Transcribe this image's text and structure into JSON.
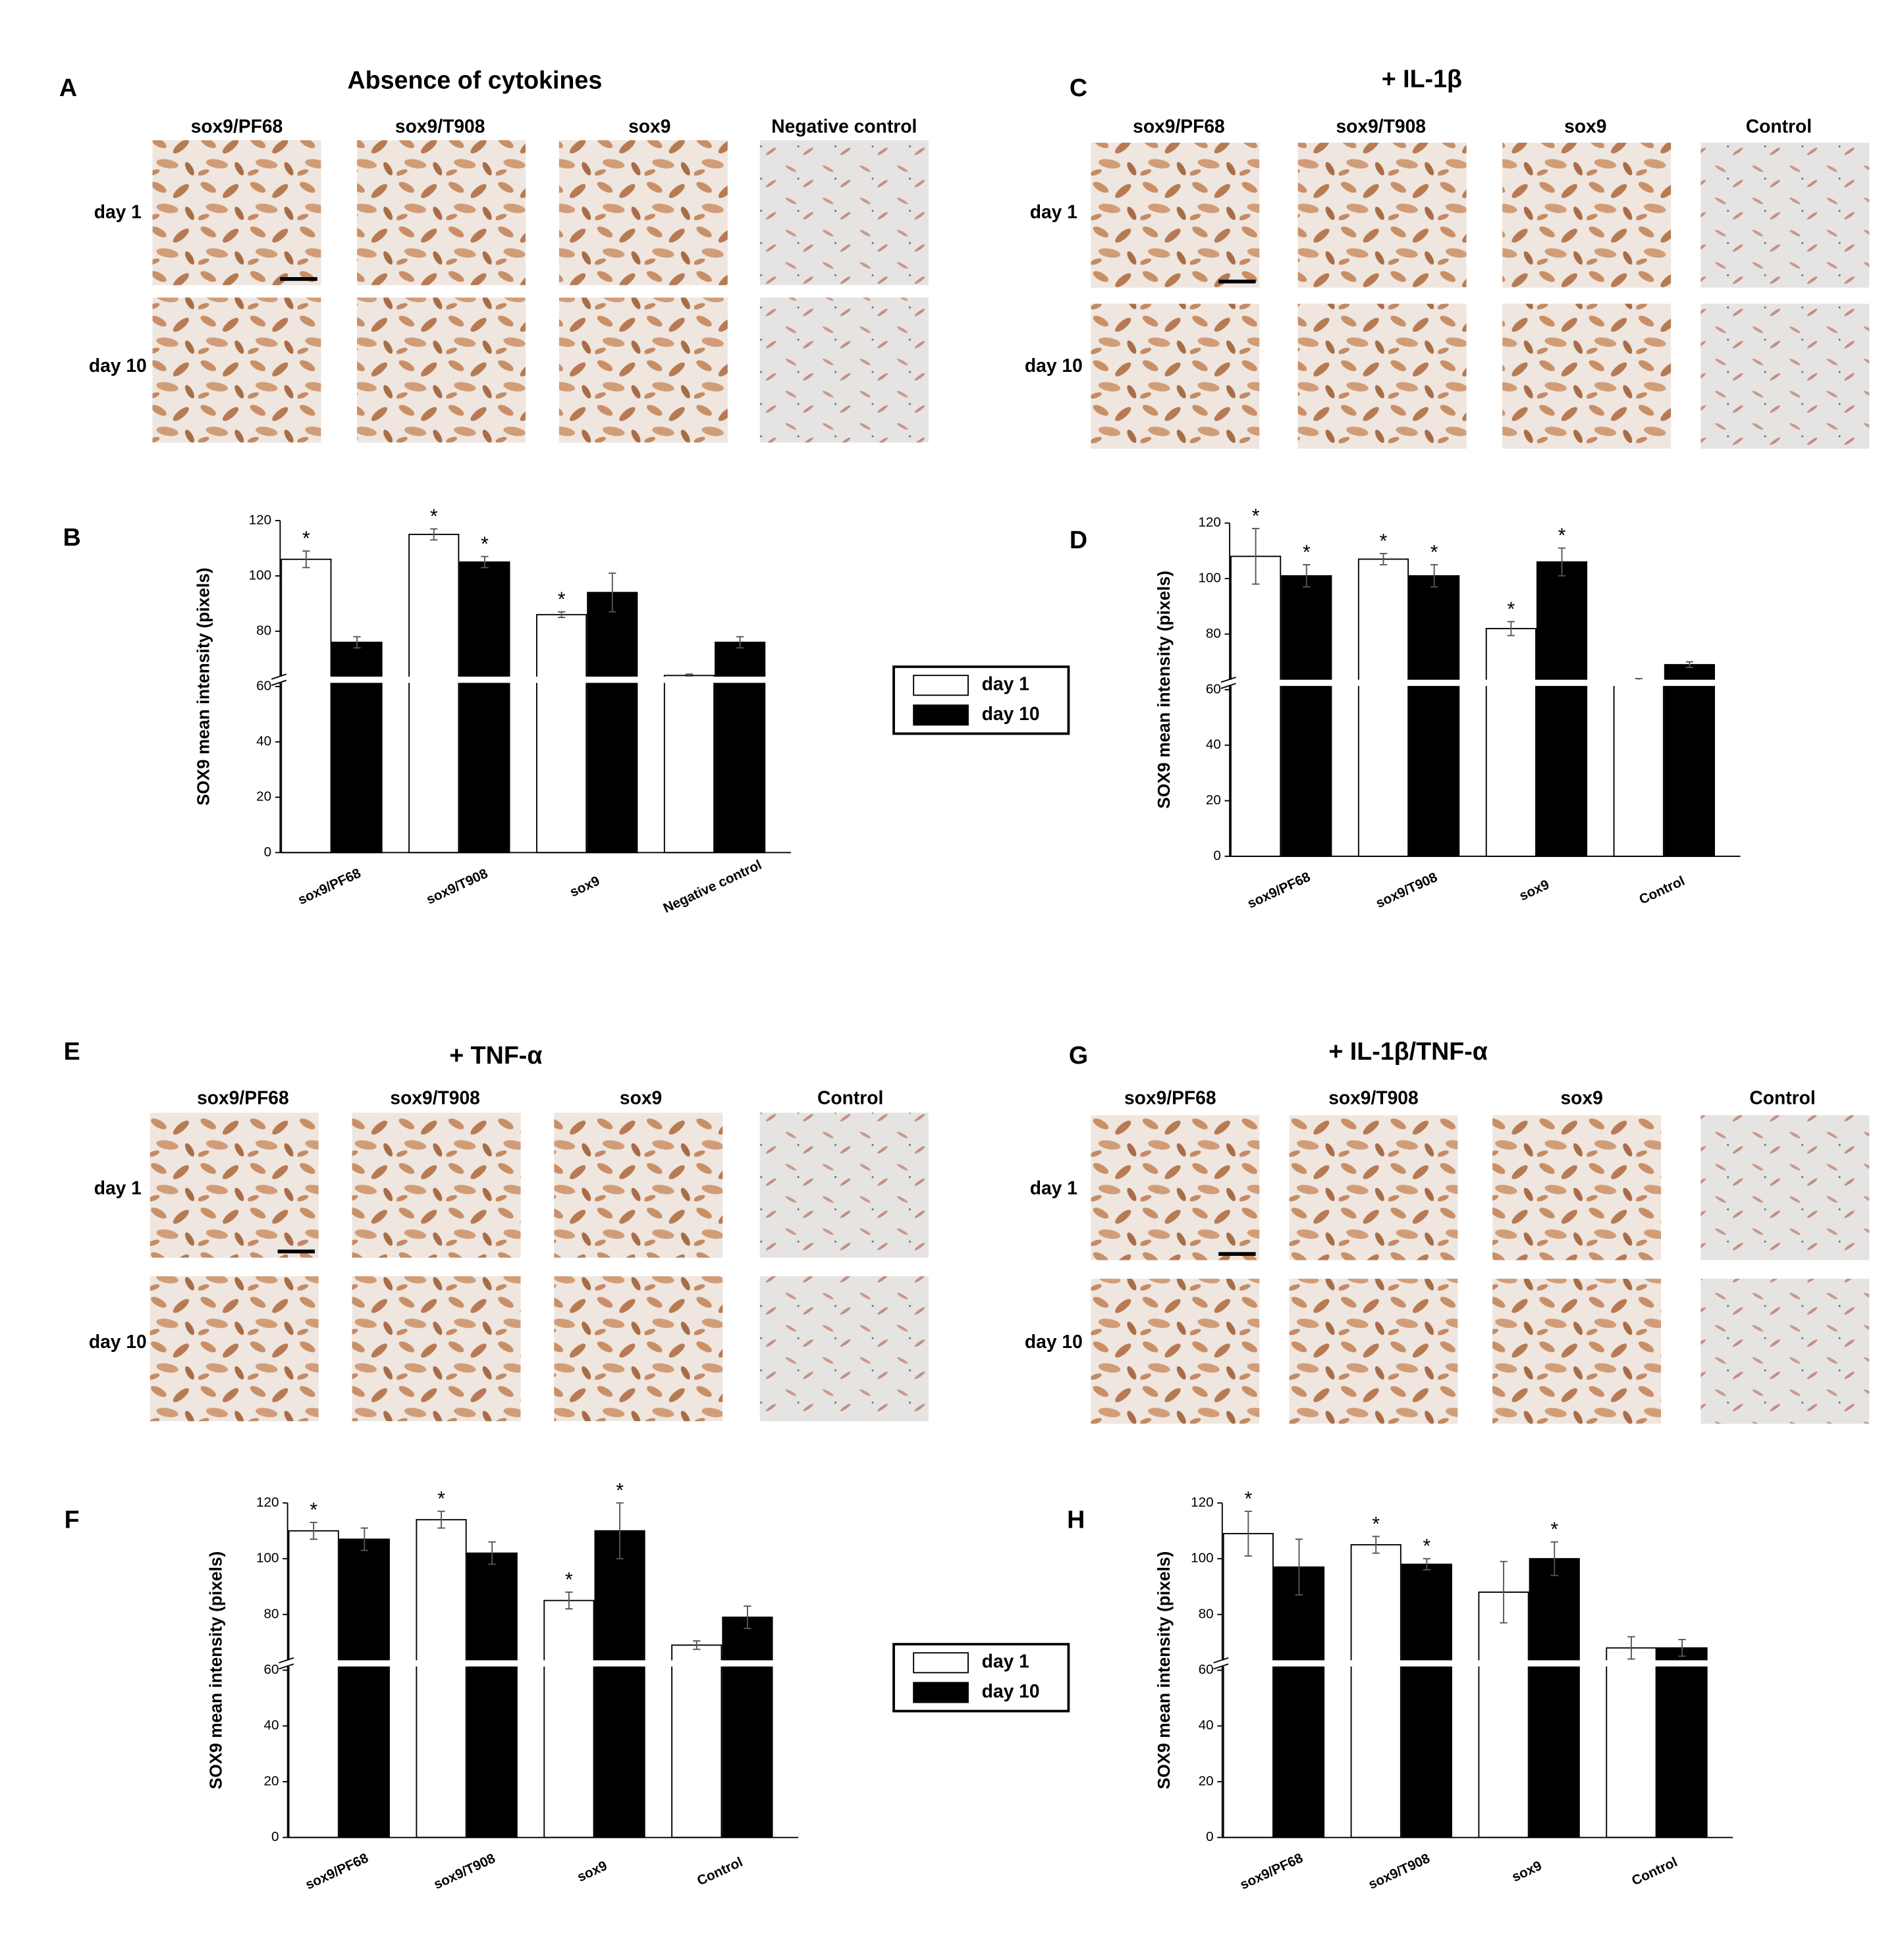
{
  "image_panels": [
    {
      "label": "A",
      "title": "Absence of cytokines",
      "columns": [
        "sox9/PF68",
        "sox9/T908",
        "sox9",
        "Negative control"
      ],
      "rows": [
        "day 1",
        "day 10"
      ]
    },
    {
      "label": "C",
      "title": "+ IL-1β",
      "columns": [
        "sox9/PF68",
        "sox9/T908",
        "sox9",
        "Control"
      ],
      "rows": [
        "day 1",
        "day 10"
      ]
    },
    {
      "label": "E",
      "title": "+ TNF-α",
      "columns": [
        "sox9/PF68",
        "sox9/T908",
        "sox9",
        "Control"
      ],
      "rows": [
        "day 1",
        "day 10"
      ]
    },
    {
      "label": "G",
      "title": "+ IL-1β/TNF-α",
      "columns": [
        "sox9/PF68",
        "sox9/T908",
        "sox9",
        "Control"
      ],
      "rows": [
        "day 1",
        "day 10"
      ]
    }
  ],
  "chart_data": [
    {
      "type": "bar",
      "panel_label": "B",
      "y_label": "SOX9 mean intensity (pixels)",
      "categories": [
        "sox9/PF68",
        "sox9/T908",
        "sox9",
        "Negative control"
      ],
      "series": [
        {
          "name": "day 1",
          "color": "#ffffff",
          "values": [
            106,
            115,
            86,
            64
          ],
          "errors": [
            3,
            2,
            1,
            0.5
          ],
          "significant": [
            true,
            true,
            true,
            false
          ]
        },
        {
          "name": "day 10",
          "color": "#000000",
          "values": [
            76,
            105,
            94,
            76
          ],
          "errors": [
            2,
            2,
            7,
            2
          ],
          "significant": [
            false,
            true,
            false,
            false
          ]
        }
      ],
      "significance_marker": "*",
      "ylim": [
        0,
        120
      ],
      "yticks": [
        0,
        20,
        40,
        60,
        80,
        100,
        120
      ],
      "axis_break": true
    },
    {
      "type": "bar",
      "panel_label": "D",
      "y_label": "SOX9 mean intensity (pixels)",
      "categories": [
        "sox9/PF68",
        "sox9/T908",
        "sox9",
        "Control"
      ],
      "series": [
        {
          "name": "day 1",
          "color": "#ffffff",
          "values": [
            108,
            107,
            82,
            63
          ],
          "errors": [
            10,
            2,
            2.5,
            1
          ],
          "significant": [
            true,
            true,
            true,
            false
          ]
        },
        {
          "name": "day 10",
          "color": "#000000",
          "values": [
            101,
            101,
            106,
            69
          ],
          "errors": [
            4,
            4,
            5,
            1
          ],
          "significant": [
            true,
            true,
            true,
            false
          ]
        }
      ],
      "significance_marker": "*",
      "ylim": [
        0,
        120
      ],
      "yticks": [
        0,
        20,
        40,
        60,
        80,
        100,
        120
      ],
      "axis_break": true
    },
    {
      "type": "bar",
      "panel_label": "F",
      "y_label": "SOX9 mean intensity (pixels)",
      "categories": [
        "sox9/PF68",
        "sox9/T908",
        "sox9",
        "Control"
      ],
      "series": [
        {
          "name": "day 1",
          "color": "#ffffff",
          "values": [
            110,
            114,
            85,
            69
          ],
          "errors": [
            3,
            3,
            3,
            1.5
          ],
          "significant": [
            true,
            true,
            true,
            false
          ]
        },
        {
          "name": "day 10",
          "color": "#000000",
          "values": [
            107,
            102,
            110,
            79
          ],
          "errors": [
            4,
            4,
            10,
            4
          ],
          "significant": [
            false,
            false,
            true,
            false
          ]
        }
      ],
      "significance_marker": "*",
      "ylim": [
        0,
        120
      ],
      "yticks": [
        0,
        20,
        40,
        60,
        80,
        100,
        120
      ],
      "axis_break": true
    },
    {
      "type": "bar",
      "panel_label": "H",
      "y_label": "SOX9 mean intensity (pixels)",
      "categories": [
        "sox9/PF68",
        "sox9/T908",
        "sox9",
        "Control"
      ],
      "series": [
        {
          "name": "day 1",
          "color": "#ffffff",
          "values": [
            109,
            105,
            88,
            68
          ],
          "errors": [
            8,
            3,
            11,
            4
          ],
          "significant": [
            true,
            true,
            false,
            false
          ]
        },
        {
          "name": "day 10",
          "color": "#000000",
          "values": [
            97,
            98,
            100,
            68
          ],
          "errors": [
            10,
            2,
            6,
            3
          ],
          "significant": [
            false,
            true,
            true,
            false
          ]
        }
      ],
      "significance_marker": "*",
      "ylim": [
        0,
        120
      ],
      "yticks": [
        0,
        20,
        40,
        60,
        80,
        100,
        120
      ],
      "axis_break": true
    }
  ]
}
